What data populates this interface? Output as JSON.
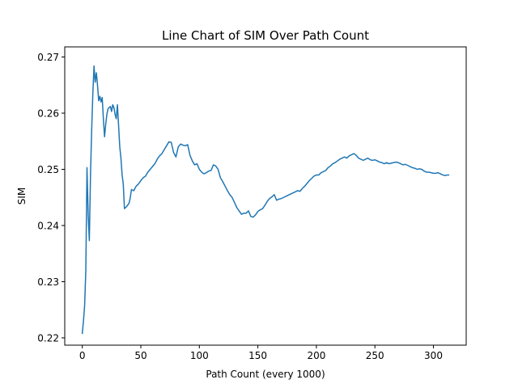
{
  "chart_data": {
    "type": "line",
    "title": "Line Chart of SIM Over Path Count",
    "xlabel": "Path Count (every 1000)",
    "ylabel": "SIM",
    "xlim": [
      -15,
      328
    ],
    "ylim": [
      0.2187,
      0.2718
    ],
    "x_ticks": [
      0,
      50,
      100,
      150,
      200,
      250,
      300
    ],
    "y_ticks": [
      0.22,
      0.23,
      0.24,
      0.25,
      0.26,
      0.27
    ],
    "grid": false,
    "legend": "none",
    "series": [
      {
        "color": "#1f77b4",
        "points": [
          [
            0,
            0.2208
          ],
          [
            1,
            0.223
          ],
          [
            2,
            0.2258
          ],
          [
            3,
            0.232
          ],
          [
            4,
            0.2503
          ],
          [
            5,
            0.242
          ],
          [
            6,
            0.2373
          ],
          [
            7,
            0.249
          ],
          [
            8,
            0.257
          ],
          [
            9,
            0.2635
          ],
          [
            10,
            0.2684
          ],
          [
            11,
            0.2655
          ],
          [
            12,
            0.2672
          ],
          [
            13,
            0.265
          ],
          [
            14,
            0.2622
          ],
          [
            15,
            0.263
          ],
          [
            16,
            0.262
          ],
          [
            17,
            0.2628
          ],
          [
            18,
            0.259
          ],
          [
            19,
            0.2558
          ],
          [
            20,
            0.258
          ],
          [
            21,
            0.2598
          ],
          [
            22,
            0.2608
          ],
          [
            23,
            0.261
          ],
          [
            24,
            0.2612
          ],
          [
            25,
            0.2603
          ],
          [
            26,
            0.2615
          ],
          [
            27,
            0.261
          ],
          [
            28,
            0.2598
          ],
          [
            29,
            0.259
          ],
          [
            30,
            0.2615
          ],
          [
            31,
            0.2578
          ],
          [
            32,
            0.254
          ],
          [
            33,
            0.252
          ],
          [
            34,
            0.249
          ],
          [
            35,
            0.2474
          ],
          [
            36,
            0.243
          ],
          [
            38,
            0.2434
          ],
          [
            40,
            0.244
          ],
          [
            41,
            0.245
          ],
          [
            42,
            0.2464
          ],
          [
            44,
            0.2462
          ],
          [
            46,
            0.247
          ],
          [
            48,
            0.2474
          ],
          [
            50,
            0.248
          ],
          [
            52,
            0.2485
          ],
          [
            54,
            0.2488
          ],
          [
            56,
            0.2495
          ],
          [
            58,
            0.25
          ],
          [
            60,
            0.2505
          ],
          [
            62,
            0.251
          ],
          [
            64,
            0.2518
          ],
          [
            66,
            0.2524
          ],
          [
            68,
            0.2528
          ],
          [
            70,
            0.2535
          ],
          [
            72,
            0.2542
          ],
          [
            74,
            0.2549
          ],
          [
            76,
            0.2548
          ],
          [
            78,
            0.253
          ],
          [
            80,
            0.2522
          ],
          [
            82,
            0.254
          ],
          [
            84,
            0.2545
          ],
          [
            86,
            0.2543
          ],
          [
            88,
            0.2542
          ],
          [
            90,
            0.2544
          ],
          [
            92,
            0.2525
          ],
          [
            94,
            0.2515
          ],
          [
            96,
            0.2508
          ],
          [
            98,
            0.251
          ],
          [
            100,
            0.25
          ],
          [
            102,
            0.2495
          ],
          [
            104,
            0.2492
          ],
          [
            106,
            0.2494
          ],
          [
            108,
            0.2497
          ],
          [
            110,
            0.2498
          ],
          [
            112,
            0.2508
          ],
          [
            114,
            0.2506
          ],
          [
            116,
            0.25
          ],
          [
            118,
            0.2485
          ],
          [
            120,
            0.2478
          ],
          [
            122,
            0.247
          ],
          [
            124,
            0.2462
          ],
          [
            126,
            0.2455
          ],
          [
            128,
            0.245
          ],
          [
            130,
            0.2441
          ],
          [
            132,
            0.2432
          ],
          [
            134,
            0.2426
          ],
          [
            136,
            0.242
          ],
          [
            138,
            0.2422
          ],
          [
            140,
            0.2422
          ],
          [
            142,
            0.2426
          ],
          [
            144,
            0.2416
          ],
          [
            146,
            0.2415
          ],
          [
            148,
            0.2419
          ],
          [
            150,
            0.2425
          ],
          [
            152,
            0.2428
          ],
          [
            154,
            0.243
          ],
          [
            156,
            0.2436
          ],
          [
            158,
            0.2443
          ],
          [
            160,
            0.2448
          ],
          [
            162,
            0.2451
          ],
          [
            164,
            0.2455
          ],
          [
            166,
            0.2445
          ],
          [
            168,
            0.2447
          ],
          [
            170,
            0.2448
          ],
          [
            172,
            0.245
          ],
          [
            174,
            0.2452
          ],
          [
            176,
            0.2454
          ],
          [
            178,
            0.2456
          ],
          [
            180,
            0.2458
          ],
          [
            182,
            0.246
          ],
          [
            184,
            0.2462
          ],
          [
            186,
            0.2461
          ],
          [
            188,
            0.2466
          ],
          [
            190,
            0.247
          ],
          [
            192,
            0.2475
          ],
          [
            194,
            0.248
          ],
          [
            196,
            0.2484
          ],
          [
            198,
            0.2488
          ],
          [
            200,
            0.249
          ],
          [
            202,
            0.249
          ],
          [
            204,
            0.2494
          ],
          [
            206,
            0.2496
          ],
          [
            208,
            0.2498
          ],
          [
            210,
            0.2503
          ],
          [
            212,
            0.2506
          ],
          [
            214,
            0.251
          ],
          [
            216,
            0.2512
          ],
          [
            218,
            0.2515
          ],
          [
            220,
            0.2518
          ],
          [
            222,
            0.252
          ],
          [
            224,
            0.2522
          ],
          [
            226,
            0.252
          ],
          [
            228,
            0.2524
          ],
          [
            230,
            0.2526
          ],
          [
            232,
            0.2528
          ],
          [
            234,
            0.2525
          ],
          [
            236,
            0.252
          ],
          [
            238,
            0.2518
          ],
          [
            240,
            0.2516
          ],
          [
            242,
            0.2518
          ],
          [
            244,
            0.252
          ],
          [
            246,
            0.2517
          ],
          [
            248,
            0.2516
          ],
          [
            250,
            0.2517
          ],
          [
            252,
            0.2515
          ],
          [
            254,
            0.2513
          ],
          [
            256,
            0.2512
          ],
          [
            258,
            0.251
          ],
          [
            260,
            0.2512
          ],
          [
            262,
            0.251
          ],
          [
            264,
            0.2511
          ],
          [
            266,
            0.2512
          ],
          [
            268,
            0.2513
          ],
          [
            270,
            0.2512
          ],
          [
            272,
            0.251
          ],
          [
            274,
            0.2508
          ],
          [
            276,
            0.2509
          ],
          [
            278,
            0.2507
          ],
          [
            280,
            0.2505
          ],
          [
            282,
            0.2503
          ],
          [
            284,
            0.2502
          ],
          [
            286,
            0.25
          ],
          [
            288,
            0.2501
          ],
          [
            290,
            0.25
          ],
          [
            292,
            0.2497
          ],
          [
            294,
            0.2495
          ],
          [
            296,
            0.2495
          ],
          [
            298,
            0.2494
          ],
          [
            300,
            0.2493
          ],
          [
            302,
            0.2493
          ],
          [
            304,
            0.2494
          ],
          [
            306,
            0.2492
          ],
          [
            308,
            0.249
          ],
          [
            310,
            0.2489
          ],
          [
            312,
            0.249
          ],
          [
            313,
            0.249
          ]
        ]
      }
    ]
  }
}
